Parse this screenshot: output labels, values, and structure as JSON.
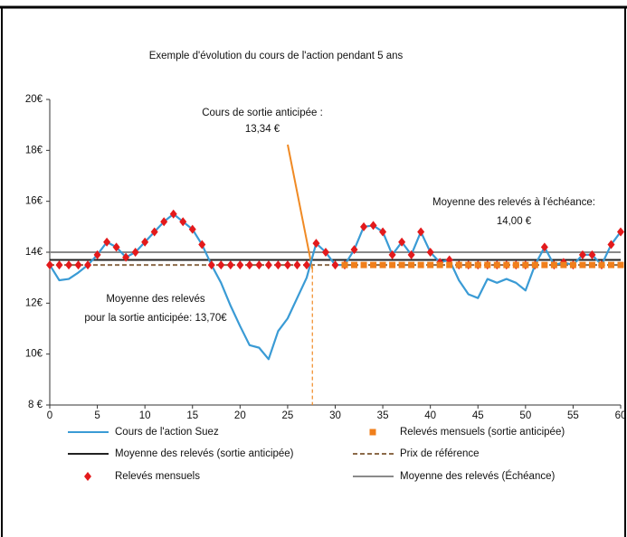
{
  "chart_data": {
    "type": "line",
    "title": "Exemple d'évolution du cours de l'action pendant 5 ans",
    "x": [
      0,
      1,
      2,
      3,
      4,
      5,
      6,
      7,
      8,
      9,
      10,
      11,
      12,
      13,
      14,
      15,
      16,
      17,
      18,
      19,
      20,
      21,
      22,
      23,
      24,
      25,
      26,
      27,
      28,
      29,
      30,
      31,
      32,
      33,
      34,
      35,
      36,
      37,
      38,
      39,
      40,
      41,
      42,
      43,
      44,
      45,
      46,
      47,
      48,
      49,
      50,
      51,
      52,
      53,
      54,
      55,
      56,
      57,
      58,
      59,
      60
    ],
    "series": [
      {
        "name": "Cours de l'action Suez",
        "color": "#3a9bd5",
        "kind": "line",
        "values": [
          13.5,
          12.9,
          12.95,
          13.2,
          13.5,
          13.9,
          14.4,
          14.2,
          13.8,
          14.0,
          14.4,
          14.8,
          15.2,
          15.5,
          15.2,
          14.9,
          14.3,
          13.5,
          12.8,
          11.9,
          11.1,
          10.35,
          10.25,
          9.8,
          10.9,
          11.4,
          12.2,
          13.0,
          14.35,
          14.0,
          13.5,
          13.5,
          14.1,
          15.0,
          15.05,
          14.8,
          13.9,
          14.4,
          13.9,
          14.8,
          14.0,
          13.6,
          13.7,
          12.9,
          12.35,
          12.2,
          12.95,
          12.8,
          12.95,
          12.8,
          12.5,
          13.5,
          14.2,
          13.5,
          13.6,
          13.5,
          13.9,
          13.9,
          13.5,
          14.3,
          14.8
        ]
      },
      {
        "name": "Relevés mensuels",
        "color": "#e31a1c",
        "kind": "scatter",
        "marker": "diamond",
        "values": [
          13.5,
          13.5,
          13.5,
          13.5,
          13.5,
          13.9,
          14.4,
          14.2,
          13.8,
          14.0,
          14.4,
          14.8,
          15.2,
          15.5,
          15.2,
          14.9,
          14.3,
          13.5,
          13.5,
          13.5,
          13.5,
          13.5,
          13.5,
          13.5,
          13.5,
          13.5,
          13.5,
          13.5,
          14.35,
          14.0,
          13.5,
          13.5,
          14.1,
          15.0,
          15.05,
          14.8,
          13.9,
          14.4,
          13.9,
          14.8,
          14.0,
          13.6,
          13.7,
          13.5,
          13.5,
          13.5,
          13.5,
          13.5,
          13.5,
          13.5,
          13.5,
          13.5,
          14.2,
          13.5,
          13.6,
          13.5,
          13.9,
          13.9,
          13.5,
          14.3,
          14.8
        ]
      },
      {
        "name": "Relevés mensuels (sortie anticipée)",
        "color": "#f07f1b",
        "kind": "scatter",
        "marker": "square",
        "x": [
          31,
          32,
          33,
          34,
          35,
          36,
          37,
          38,
          39,
          40,
          41,
          42,
          43,
          44,
          45,
          46,
          47,
          48,
          49,
          50,
          51,
          52,
          53,
          54,
          55,
          56,
          57,
          58,
          59,
          60
        ],
        "values": [
          13.5,
          13.5,
          13.5,
          13.5,
          13.5,
          13.5,
          13.5,
          13.5,
          13.5,
          13.5,
          13.5,
          13.5,
          13.5,
          13.5,
          13.5,
          13.5,
          13.5,
          13.5,
          13.5,
          13.5,
          13.5,
          13.5,
          13.5,
          13.5,
          13.5,
          13.5,
          13.5,
          13.5,
          13.5,
          13.5
        ]
      }
    ],
    "hlines": [
      {
        "name": "Moyenne des relevés (sortie anticipée)",
        "value": 13.7,
        "color": "#222222",
        "style": "solid",
        "annotation": [
          "Moyenne des relevés",
          "pour la sortie anticipée: 13,70€"
        ]
      },
      {
        "name": "Prix de référence",
        "value": 13.5,
        "color": "#8c6b4a",
        "style": "dashed"
      },
      {
        "name": "Moyenne des relevés (Échéance)",
        "value": 14.0,
        "color": "#8a8a8a",
        "style": "solid",
        "annotation": [
          "Moyenne des relevés à l'échéance:",
          "14,00 €"
        ]
      }
    ],
    "exit": {
      "x": 27.6,
      "value": 13.34,
      "color": "#f08a24",
      "annotation": [
        "Cours de sortie anticipée :",
        "13,34 €"
      ]
    },
    "xlim": [
      0,
      60
    ],
    "xticks": [
      0,
      5,
      10,
      15,
      20,
      25,
      30,
      35,
      40,
      45,
      50,
      55,
      60
    ],
    "ylim": [
      8,
      20
    ],
    "yticks": [
      {
        "value": 8,
        "label": "8 €"
      },
      {
        "value": 10,
        "label": "10€"
      },
      {
        "value": 12,
        "label": "12€"
      },
      {
        "value": 14,
        "label": "14€"
      },
      {
        "value": 16,
        "label": "16€"
      },
      {
        "value": 18,
        "label": "18€"
      },
      {
        "value": 20,
        "label": "20€"
      }
    ]
  }
}
